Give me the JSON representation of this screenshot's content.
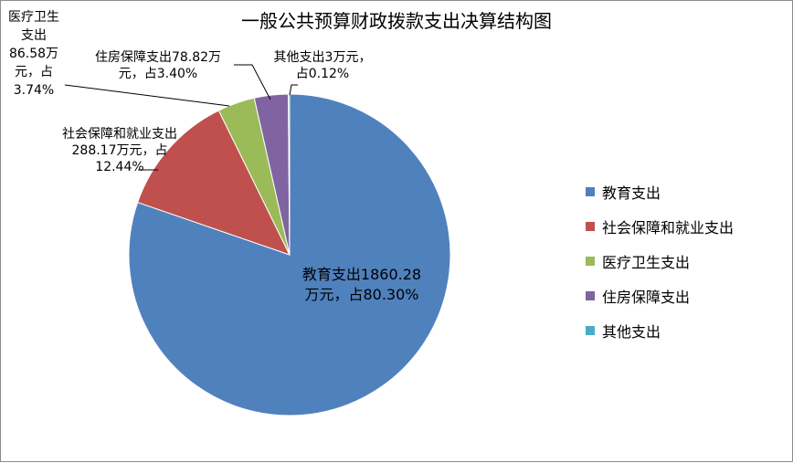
{
  "title": "一般公共预算财政拨款支出决算结构图",
  "colors": {
    "教育支出": "#4F81BD",
    "社会保障和就业支出": "#C0504D",
    "医疗卫生支出": "#9BBB59",
    "住房保障支出": "#8064A2",
    "其他支出": "#4BACC6"
  },
  "chart_data": {
    "type": "pie",
    "title": "一般公共预算财政拨款支出决算结构图",
    "unit": "万元",
    "slices": [
      {
        "name": "教育支出",
        "value": 1860.28,
        "percent": 80.3,
        "label_lines": [
          "教育支出1860.28",
          "万元，占80.30%"
        ]
      },
      {
        "name": "社会保障和就业支出",
        "value": 288.17,
        "percent": 12.44,
        "label_lines": [
          "社会保障和就业支出",
          "288.17万元，占",
          "12.44%"
        ]
      },
      {
        "name": "医疗卫生支出",
        "value": 86.58,
        "percent": 3.74,
        "label_lines": [
          "医疗卫生",
          "支出",
          "86.58万",
          "元，占",
          "3.74%"
        ]
      },
      {
        "name": "住房保障支出",
        "value": 78.82,
        "percent": 3.4,
        "label_lines": [
          "住房保障支出78.82万",
          "元，占3.40%"
        ]
      },
      {
        "name": "其他支出",
        "value": 3,
        "percent": 0.12,
        "label_lines": [
          "其他支出3万元，",
          "占0.12%"
        ]
      }
    ],
    "legend": {
      "position": "right",
      "items": [
        "教育支出",
        "社会保障和就业支出",
        "医疗卫生支出",
        "住房保障支出",
        "其他支出"
      ]
    }
  }
}
